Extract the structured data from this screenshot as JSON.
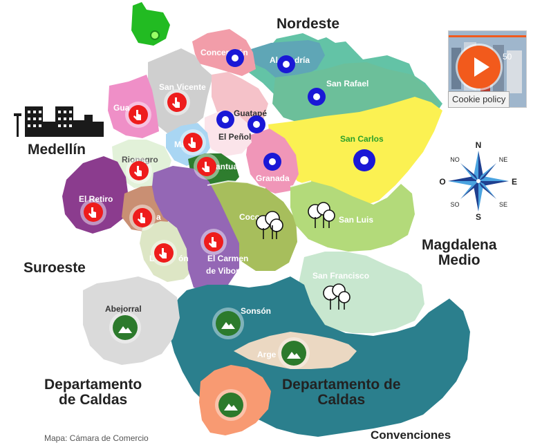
{
  "regions": {
    "nordeste": "Nordeste",
    "medellin": "Medellín",
    "suroeste": "Suroeste",
    "magdalena_1": "Magdalena",
    "magdalena_2": "Medio",
    "caldas_left_1": "Departamento",
    "caldas_left_2": "de Caldas",
    "caldas_right_1": "Departamento de",
    "caldas_right_2": "Caldas"
  },
  "municipalities": {
    "concepcion": "Concepción",
    "alejandria": "Alejandría",
    "san_vicente": "San Vicente",
    "san_rafael": "San Rafael",
    "guarne": "Gua",
    "guatape": "Guatapé",
    "el_penol": "El Peñol",
    "san_carlos": "San Carlos",
    "marinilla": "Ma",
    "rionegro": "Rionegro",
    "el_santuario": "antuario",
    "granada": "Granada",
    "el_retiro": "El Retiro",
    "la_ceja": "a",
    "cocorna": "Coco",
    "san_luis": "San Luis",
    "la_union": "L",
    "la_union_b": "ón",
    "el_carmen_1": "El Carmen",
    "el_carmen_2": "de Viboral",
    "san_francisco": "San Francisco",
    "abejorral": "Abejorral",
    "sonson": "Sonsón",
    "argelia": "Arge",
    "narino": "o"
  },
  "compass": {
    "n": "N",
    "s": "S",
    "e": "E",
    "o": "O",
    "ne": "NE",
    "no": "NO",
    "se": "SE",
    "so": "SO"
  },
  "video": {
    "cookie_label": "Cookie policy",
    "time": "50"
  },
  "footer": {
    "source": "Mapa: Cámara de Comercio",
    "legend_title": "Convenciones"
  },
  "colors": {
    "marker_red": "#ee1c1c",
    "marker_blue": "#1a18d6",
    "marker_green": "#2c7a2c",
    "outline_ring": "#ffffff"
  }
}
